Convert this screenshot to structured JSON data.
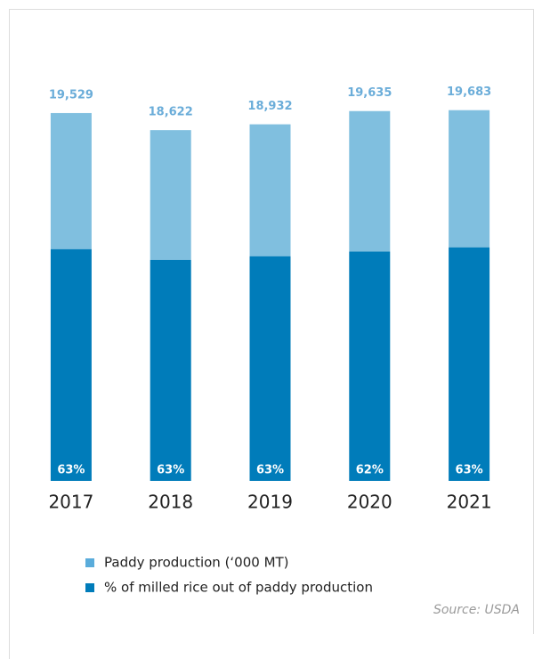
{
  "chart_data": {
    "type": "bar",
    "categories": [
      "2017",
      "2018",
      "2019",
      "2020",
      "2021"
    ],
    "series": [
      {
        "name": "Paddy production (‘000 MT)",
        "color": "#80bfdf",
        "values": [
          19529,
          18622,
          18932,
          19635,
          19683
        ],
        "value_labels": [
          "19,529",
          "18,622",
          "18,932",
          "19,635",
          "19,683"
        ]
      },
      {
        "name": "% of milled rice out of paddy production",
        "color": "#007cba",
        "values": [
          63,
          63,
          63,
          62,
          63
        ],
        "value_labels": [
          "63%",
          "63%",
          "63%",
          "62%",
          "63%"
        ]
      }
    ],
    "ylim": [
      0,
      24000
    ],
    "source": "Source: USDA"
  }
}
